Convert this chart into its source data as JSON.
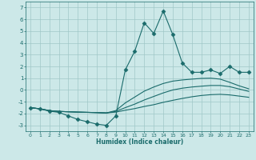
{
  "xlabel": "Humidex (Indice chaleur)",
  "bg_color": "#cce8e8",
  "grid_color": "#a0c8c8",
  "line_color": "#1a6b6b",
  "xlim": [
    -0.5,
    23.5
  ],
  "ylim": [
    -3.5,
    7.5
  ],
  "xticks": [
    0,
    1,
    2,
    3,
    4,
    5,
    6,
    7,
    8,
    9,
    10,
    11,
    12,
    13,
    14,
    15,
    16,
    17,
    18,
    19,
    20,
    21,
    22,
    23
  ],
  "yticks": [
    -3,
    -2,
    -1,
    0,
    1,
    2,
    3,
    4,
    5,
    6,
    7
  ],
  "series": [
    {
      "x": [
        0,
        1,
        2,
        3,
        4,
        5,
        6,
        7,
        8,
        9,
        10,
        11,
        12,
        13,
        14,
        15,
        16,
        17,
        18,
        19,
        20,
        21,
        22,
        23
      ],
      "y": [
        -1.5,
        -1.6,
        -1.8,
        -1.9,
        -2.2,
        -2.5,
        -2.7,
        -2.9,
        -3.0,
        -2.2,
        1.7,
        3.3,
        5.7,
        4.8,
        6.7,
        4.7,
        2.3,
        1.5,
        1.5,
        1.7,
        1.4,
        2.0,
        1.5,
        1.5
      ],
      "marker": "D",
      "markersize": 2.5,
      "linewidth": 0.8
    },
    {
      "x": [
        0,
        1,
        2,
        3,
        4,
        5,
        6,
        7,
        8,
        9,
        10,
        11,
        12,
        13,
        14,
        15,
        16,
        17,
        18,
        19,
        20,
        21,
        22,
        23
      ],
      "y": [
        -1.5,
        -1.6,
        -1.75,
        -1.82,
        -1.85,
        -1.88,
        -1.9,
        -1.92,
        -1.95,
        -1.75,
        -1.1,
        -0.6,
        -0.1,
        0.25,
        0.55,
        0.75,
        0.85,
        0.92,
        0.98,
        1.0,
        0.92,
        0.65,
        0.35,
        0.1
      ],
      "marker": null,
      "linewidth": 0.8
    },
    {
      "x": [
        0,
        1,
        2,
        3,
        4,
        5,
        6,
        7,
        8,
        9,
        10,
        11,
        12,
        13,
        14,
        15,
        16,
        17,
        18,
        19,
        20,
        21,
        22,
        23
      ],
      "y": [
        -1.5,
        -1.6,
        -1.75,
        -1.82,
        -1.85,
        -1.88,
        -1.9,
        -1.92,
        -1.95,
        -1.82,
        -1.5,
        -1.2,
        -0.85,
        -0.55,
        -0.25,
        0.0,
        0.15,
        0.25,
        0.32,
        0.38,
        0.38,
        0.28,
        0.08,
        -0.12
      ],
      "marker": null,
      "linewidth": 0.8
    },
    {
      "x": [
        0,
        1,
        2,
        3,
        4,
        5,
        6,
        7,
        8,
        9,
        10,
        11,
        12,
        13,
        14,
        15,
        16,
        17,
        18,
        19,
        20,
        21,
        22,
        23
      ],
      "y": [
        -1.5,
        -1.6,
        -1.75,
        -1.82,
        -1.85,
        -1.88,
        -1.9,
        -1.92,
        -1.95,
        -1.88,
        -1.72,
        -1.58,
        -1.4,
        -1.25,
        -1.05,
        -0.88,
        -0.72,
        -0.58,
        -0.47,
        -0.4,
        -0.37,
        -0.42,
        -0.52,
        -0.62
      ],
      "marker": null,
      "linewidth": 0.8
    }
  ]
}
